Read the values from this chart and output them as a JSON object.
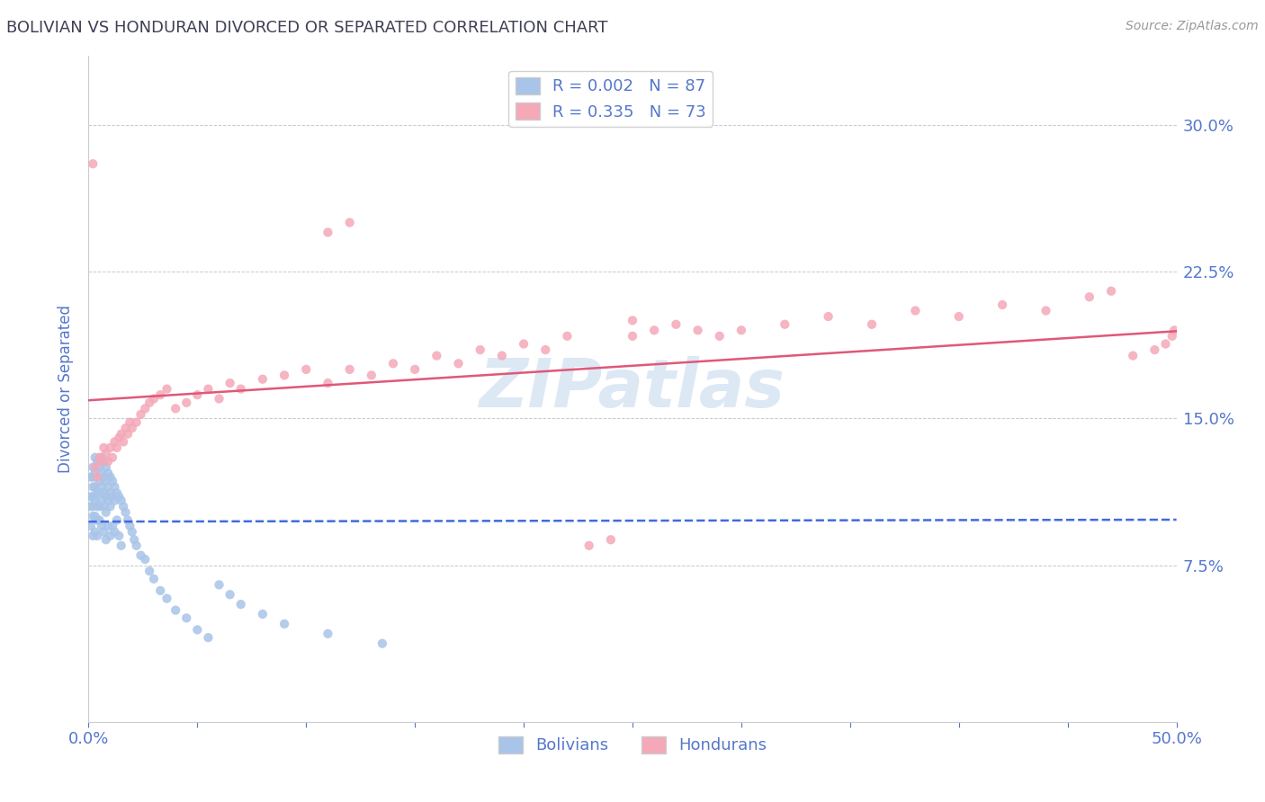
{
  "title": "BOLIVIAN VS HONDURAN DIVORCED OR SEPARATED CORRELATION CHART",
  "source_text": "Source: ZipAtlas.com",
  "ylabel": "Divorced or Separated",
  "xlim": [
    0.0,
    0.5
  ],
  "ylim": [
    -0.005,
    0.335
  ],
  "xticks": [
    0.0,
    0.05,
    0.1,
    0.15,
    0.2,
    0.25,
    0.3,
    0.35,
    0.4,
    0.45,
    0.5
  ],
  "yticks": [
    0.075,
    0.15,
    0.225,
    0.3
  ],
  "bolivian_R": 0.002,
  "bolivian_N": 87,
  "honduran_R": 0.335,
  "honduran_N": 73,
  "bolivian_color": "#a8c4e8",
  "honduran_color": "#f4a8b8",
  "bolivian_line_color": "#4169e1",
  "honduran_line_color": "#e05878",
  "grid_color": "#bbbbbb",
  "background_color": "#ffffff",
  "title_color": "#404055",
  "tick_label_color": "#5577cc",
  "watermark_color": "#dde8f5",
  "legend_box_color": "#ffffff",
  "figwidth": 14.06,
  "figheight": 8.92,
  "dpi": 100,
  "bolivian_x": [
    0.001,
    0.001,
    0.001,
    0.001,
    0.002,
    0.002,
    0.002,
    0.002,
    0.002,
    0.002,
    0.002,
    0.003,
    0.003,
    0.003,
    0.003,
    0.003,
    0.003,
    0.004,
    0.004,
    0.004,
    0.004,
    0.004,
    0.004,
    0.005,
    0.005,
    0.005,
    0.005,
    0.005,
    0.006,
    0.006,
    0.006,
    0.006,
    0.006,
    0.007,
    0.007,
    0.007,
    0.007,
    0.007,
    0.008,
    0.008,
    0.008,
    0.008,
    0.008,
    0.009,
    0.009,
    0.009,
    0.009,
    0.01,
    0.01,
    0.01,
    0.01,
    0.011,
    0.011,
    0.011,
    0.012,
    0.012,
    0.012,
    0.013,
    0.013,
    0.014,
    0.014,
    0.015,
    0.015,
    0.016,
    0.017,
    0.018,
    0.019,
    0.02,
    0.021,
    0.022,
    0.024,
    0.026,
    0.028,
    0.03,
    0.033,
    0.036,
    0.04,
    0.045,
    0.05,
    0.055,
    0.06,
    0.065,
    0.07,
    0.08,
    0.09,
    0.11,
    0.135
  ],
  "bolivian_y": [
    0.12,
    0.11,
    0.105,
    0.095,
    0.125,
    0.12,
    0.115,
    0.11,
    0.105,
    0.1,
    0.09,
    0.13,
    0.122,
    0.115,
    0.108,
    0.1,
    0.092,
    0.128,
    0.12,
    0.112,
    0.105,
    0.098,
    0.09,
    0.125,
    0.118,
    0.112,
    0.105,
    0.098,
    0.13,
    0.122,
    0.115,
    0.108,
    0.095,
    0.128,
    0.12,
    0.112,
    0.105,
    0.092,
    0.125,
    0.118,
    0.11,
    0.102,
    0.088,
    0.122,
    0.115,
    0.108,
    0.095,
    0.12,
    0.112,
    0.105,
    0.09,
    0.118,
    0.11,
    0.095,
    0.115,
    0.108,
    0.092,
    0.112,
    0.098,
    0.11,
    0.09,
    0.108,
    0.085,
    0.105,
    0.102,
    0.098,
    0.095,
    0.092,
    0.088,
    0.085,
    0.08,
    0.078,
    0.072,
    0.068,
    0.062,
    0.058,
    0.052,
    0.048,
    0.042,
    0.038,
    0.065,
    0.06,
    0.055,
    0.05,
    0.045,
    0.04,
    0.035
  ],
  "honduran_x": [
    0.002,
    0.003,
    0.004,
    0.005,
    0.006,
    0.007,
    0.008,
    0.009,
    0.01,
    0.011,
    0.012,
    0.013,
    0.014,
    0.015,
    0.016,
    0.017,
    0.018,
    0.019,
    0.02,
    0.022,
    0.024,
    0.026,
    0.028,
    0.03,
    0.033,
    0.036,
    0.04,
    0.045,
    0.05,
    0.055,
    0.06,
    0.065,
    0.07,
    0.08,
    0.09,
    0.1,
    0.11,
    0.12,
    0.13,
    0.14,
    0.15,
    0.16,
    0.17,
    0.18,
    0.19,
    0.2,
    0.21,
    0.22,
    0.23,
    0.24,
    0.25,
    0.26,
    0.27,
    0.28,
    0.29,
    0.3,
    0.32,
    0.34,
    0.36,
    0.38,
    0.4,
    0.42,
    0.44,
    0.46,
    0.47,
    0.48,
    0.49,
    0.495,
    0.498,
    0.499,
    0.11,
    0.12,
    0.25
  ],
  "honduran_y": [
    0.28,
    0.125,
    0.12,
    0.13,
    0.128,
    0.135,
    0.132,
    0.128,
    0.135,
    0.13,
    0.138,
    0.135,
    0.14,
    0.142,
    0.138,
    0.145,
    0.142,
    0.148,
    0.145,
    0.148,
    0.152,
    0.155,
    0.158,
    0.16,
    0.162,
    0.165,
    0.155,
    0.158,
    0.162,
    0.165,
    0.16,
    0.168,
    0.165,
    0.17,
    0.172,
    0.175,
    0.168,
    0.175,
    0.172,
    0.178,
    0.175,
    0.182,
    0.178,
    0.185,
    0.182,
    0.188,
    0.185,
    0.192,
    0.085,
    0.088,
    0.192,
    0.195,
    0.198,
    0.195,
    0.192,
    0.195,
    0.198,
    0.202,
    0.198,
    0.205,
    0.202,
    0.208,
    0.205,
    0.212,
    0.215,
    0.182,
    0.185,
    0.188,
    0.192,
    0.195,
    0.245,
    0.25,
    0.2
  ]
}
